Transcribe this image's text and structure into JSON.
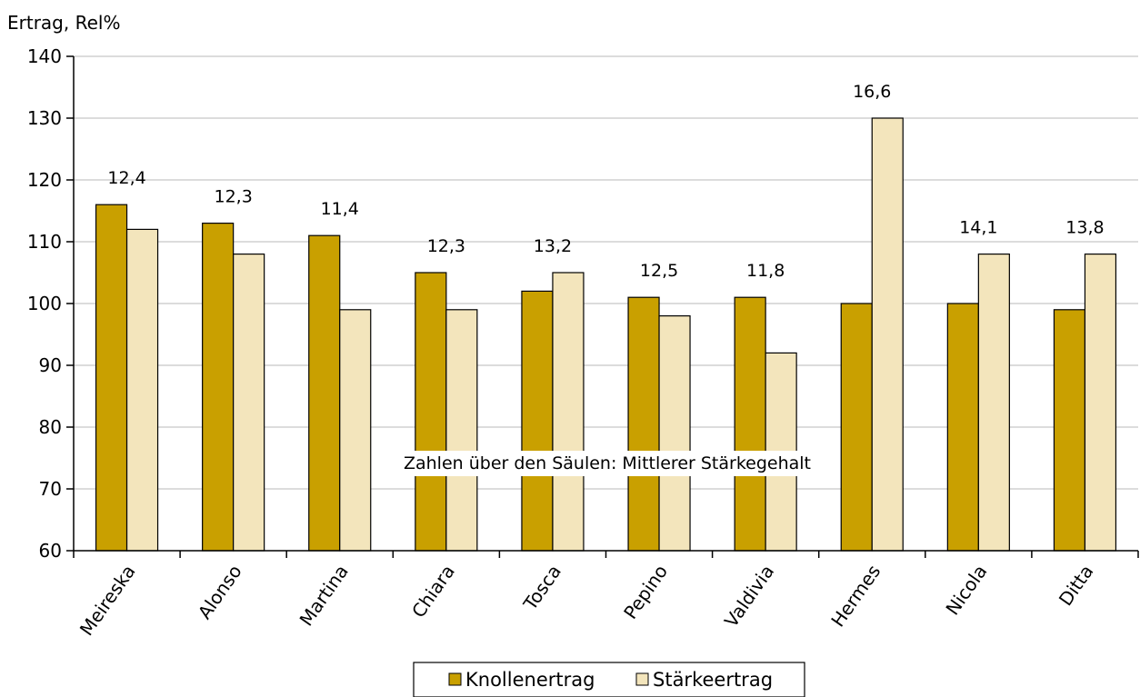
{
  "chart_data": {
    "type": "bar",
    "title": "",
    "ylabel": "Ertrag, Rel%",
    "xlabel": "",
    "ylim": [
      60,
      140
    ],
    "yticks": [
      60,
      70,
      80,
      90,
      100,
      110,
      120,
      130,
      140
    ],
    "grid": true,
    "categories": [
      "Meireska",
      "Alonso",
      "Martina",
      "Chiara",
      "Tosca",
      "Pepino",
      "Valdivia",
      "Hermes",
      "Nicola",
      "Ditta"
    ],
    "series": [
      {
        "name": "Knollenertrag",
        "color": "#C9A000",
        "values": [
          116,
          113,
          111,
          105,
          102,
          101,
          101,
          100,
          100,
          99
        ]
      },
      {
        "name": "Stärkeertrag",
        "color": "#F3E5BC",
        "values": [
          112,
          108,
          99,
          99,
          105,
          98,
          92,
          130,
          108,
          108
        ]
      }
    ],
    "bar_labels": [
      "12,4",
      "12,3",
      "11,4",
      "12,3",
      "13,2",
      "12,5",
      "11,8",
      "16,6",
      "14,1",
      "13,8"
    ],
    "annotation": "Zahlen über den Säulen: Mittlerer Stärkegehalt",
    "legend_position": "bottom"
  }
}
